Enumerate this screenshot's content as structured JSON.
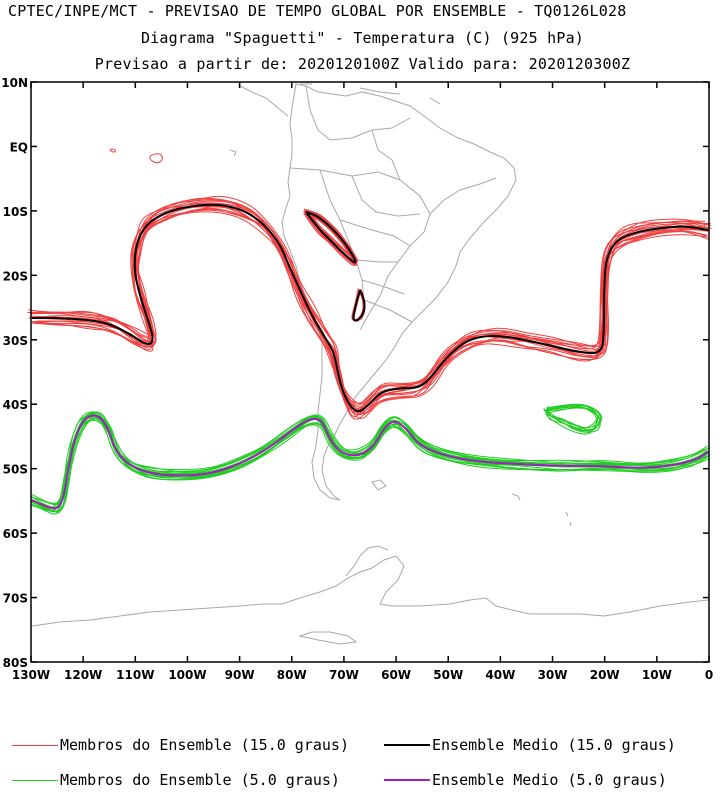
{
  "header": {
    "line1": "CPTEC/INPE/MCT - PREVISAO DE TEMPO GLOBAL POR ENSEMBLE - TQ0126L028",
    "line2": "Diagrama \"Spaguetti\" - Temperatura (C) (925 hPa)",
    "line3": "Previsao a partir de: 2020120100Z  Valido para: 2020120300Z"
  },
  "map": {
    "lat_labels": [
      "10N",
      "EQ",
      "10S",
      "20S",
      "30S",
      "40S",
      "50S",
      "60S",
      "70S",
      "80S"
    ],
    "lon_labels": [
      "130W",
      "120W",
      "110W",
      "100W",
      "90W",
      "80W",
      "70W",
      "60W",
      "50W",
      "40W",
      "30W",
      "20W",
      "10W",
      "0"
    ],
    "lat_range": [
      -80,
      10
    ],
    "lon_range": [
      -130,
      0
    ]
  },
  "legend": {
    "members_15": "Membros do Ensemble (15.0 graus)",
    "mean_15": "Ensemble Medio (15.0 graus)",
    "members_5": "Membros do Ensemble (5.0 graus)",
    "mean_5": "Ensemble Medio (5.0 graus)"
  },
  "colors": {
    "members_15": "#f04040",
    "mean_15": "#000000",
    "members_5": "#22cc22",
    "mean_5": "#a020c0",
    "coast": "#a8a8a8"
  }
}
